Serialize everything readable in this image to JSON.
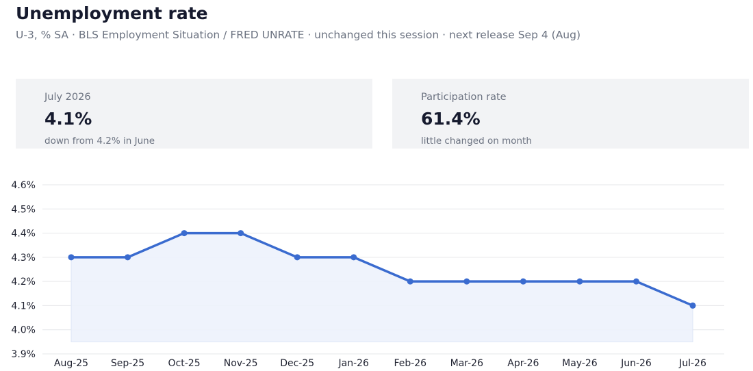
{
  "header": {
    "title": "Unemployment rate",
    "subtitle": "U-3, % SA · BLS Employment Situation / FRED UNRATE · unchanged this session · next release Sep 4 (Aug)"
  },
  "cards": [
    {
      "label": "July 2026",
      "value": "4.1%",
      "note": "down from 4.2% in June"
    },
    {
      "label": "Participation rate",
      "value": "61.4%",
      "note": "little changed on month"
    }
  ],
  "colors": {
    "line": "#3a6bcf",
    "fill": "#edf2fc",
    "grid": "#e6e7ea",
    "card_bg": "#f2f3f5"
  },
  "chart_data": {
    "type": "area",
    "title": "",
    "xlabel": "",
    "ylabel": "",
    "categories": [
      "Aug-25",
      "Sep-25",
      "Oct-25",
      "Nov-25",
      "Dec-25",
      "Jan-26",
      "Feb-26",
      "Mar-26",
      "Apr-26",
      "May-26",
      "Jun-26",
      "Jul-26"
    ],
    "values": [
      4.3,
      4.3,
      4.4,
      4.4,
      4.3,
      4.3,
      4.2,
      4.2,
      4.2,
      4.2,
      4.2,
      4.1
    ],
    "area_baseline": 3.95,
    "ylim": [
      3.9,
      4.6
    ],
    "yticks": [
      3.9,
      4.0,
      4.1,
      4.2,
      4.3,
      4.4,
      4.5,
      4.6
    ],
    "ytick_labels": [
      "3.9%",
      "4.0%",
      "4.1%",
      "4.2%",
      "4.3%",
      "4.4%",
      "4.5%",
      "4.6%"
    ],
    "grid": true,
    "legend": "none"
  }
}
